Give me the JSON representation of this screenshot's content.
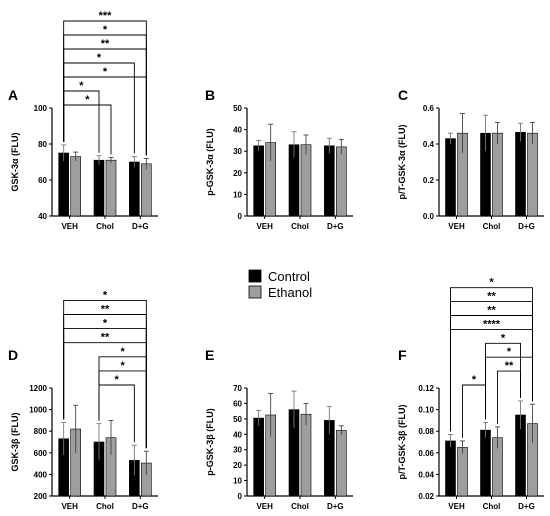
{
  "colors": {
    "control": "#000000",
    "ethanol": "#9e9e9e",
    "axis": "#000000"
  },
  "legend": {
    "items": [
      {
        "key": "control",
        "label": "Control"
      },
      {
        "key": "ethanol",
        "label": "Ethanol"
      }
    ]
  },
  "chart_data": [
    {
      "id": "A",
      "letter": "A",
      "type": "bar",
      "ylabel": "GSK-3α (FLU)",
      "ylim": [
        40,
        100
      ],
      "yticks": [
        40,
        60,
        80,
        100
      ],
      "categories": [
        "VEH",
        "Chol",
        "D+G"
      ],
      "series": [
        {
          "name": "Control",
          "values": [
            75,
            71,
            70
          ],
          "errors": [
            4.5,
            2.5,
            3
          ]
        },
        {
          "name": "Ethanol",
          "values": [
            73,
            71,
            69
          ],
          "errors": [
            2.5,
            1.5,
            3
          ]
        }
      ],
      "comparisons": [
        {
          "from": 0,
          "to": 3,
          "label": "*"
        },
        {
          "from": 0,
          "to": 2,
          "label": "*"
        },
        {
          "from": 0,
          "to": 5,
          "label": "*"
        },
        {
          "from": 0,
          "to": 4,
          "label": "*"
        },
        {
          "from": 0,
          "to": 5,
          "label": "**"
        },
        {
          "from": 0,
          "to": 5,
          "label": "*"
        },
        {
          "from": 0,
          "to": 5,
          "label": "***"
        }
      ]
    },
    {
      "id": "B",
      "letter": "B",
      "type": "bar",
      "ylabel": "p-GSK-3α (FLU)",
      "ylim": [
        0,
        50
      ],
      "yticks": [
        0,
        10,
        20,
        30,
        40,
        50
      ],
      "categories": [
        "VEH",
        "Chol",
        "D+G"
      ],
      "series": [
        {
          "name": "Control",
          "values": [
            32.5,
            33,
            32.5
          ],
          "errors": [
            2.5,
            6,
            3.5
          ]
        },
        {
          "name": "Ethanol",
          "values": [
            34,
            33,
            32
          ],
          "errors": [
            8.5,
            4.5,
            3.5
          ]
        }
      ],
      "comparisons": []
    },
    {
      "id": "C",
      "letter": "C",
      "type": "bar",
      "ylabel": "p/T-GSK-3α (FLU)",
      "ylim": [
        0,
        0.6
      ],
      "yticks": [
        0.0,
        0.2,
        0.4,
        0.6
      ],
      "categories": [
        "VEH",
        "Chol",
        "D+G"
      ],
      "series": [
        {
          "name": "Control",
          "values": [
            0.43,
            0.46,
            0.465
          ],
          "errors": [
            0.03,
            0.1,
            0.05
          ]
        },
        {
          "name": "Ethanol",
          "values": [
            0.46,
            0.46,
            0.46
          ],
          "errors": [
            0.11,
            0.06,
            0.06
          ]
        }
      ],
      "comparisons": []
    },
    {
      "id": "D",
      "letter": "D",
      "type": "bar",
      "ylabel": "GSK-3β (FLU)",
      "ylim": [
        200,
        1200
      ],
      "yticks": [
        200,
        400,
        600,
        800,
        1000,
        1200
      ],
      "categories": [
        "VEH",
        "Chol",
        "D+G"
      ],
      "series": [
        {
          "name": "Control",
          "values": [
            730,
            700,
            530
          ],
          "errors": [
            150,
            170,
            140
          ]
        },
        {
          "name": "Ethanol",
          "values": [
            820,
            740,
            505
          ],
          "errors": [
            220,
            160,
            110
          ]
        }
      ],
      "comparisons": [
        {
          "from": 2,
          "to": 4,
          "label": "*"
        },
        {
          "from": 2,
          "to": 5,
          "label": "*"
        },
        {
          "from": 2,
          "to": 5,
          "label": "*"
        },
        {
          "from": 0,
          "to": 5,
          "label": "**"
        },
        {
          "from": 0,
          "to": 5,
          "label": "*"
        },
        {
          "from": 0,
          "to": 5,
          "label": "**"
        },
        {
          "from": 0,
          "to": 5,
          "label": "*"
        }
      ]
    },
    {
      "id": "E",
      "letter": "E",
      "type": "bar",
      "ylabel": "p-GSK-3β (FLU)",
      "ylim": [
        0,
        70
      ],
      "yticks": [
        0,
        10,
        20,
        30,
        40,
        50,
        60,
        70
      ],
      "categories": [
        "VEH",
        "Chol",
        "D+G"
      ],
      "series": [
        {
          "name": "Control",
          "values": [
            50.5,
            56,
            49
          ],
          "errors": [
            5,
            12,
            9
          ]
        },
        {
          "name": "Ethanol",
          "values": [
            52.5,
            53,
            42.5
          ],
          "errors": [
            14,
            7,
            3
          ]
        }
      ],
      "comparisons": []
    },
    {
      "id": "F",
      "letter": "F",
      "type": "bar",
      "ylabel": "p/T-GSK-3β (FLU)",
      "ylim": [
        0.02,
        0.12
      ],
      "yticks": [
        0.02,
        0.04,
        0.06,
        0.08,
        0.1,
        0.12
      ],
      "categories": [
        "VEH",
        "Chol",
        "D+G"
      ],
      "series": [
        {
          "name": "Control",
          "values": [
            0.071,
            0.081,
            0.095
          ],
          "errors": [
            0.006,
            0.007,
            0.013
          ]
        },
        {
          "name": "Ethanol",
          "values": [
            0.065,
            0.074,
            0.087
          ],
          "errors": [
            0.006,
            0.01,
            0.018
          ]
        }
      ],
      "comparisons": [
        {
          "from": 1,
          "to": 2,
          "label": "*"
        },
        {
          "from": 3,
          "to": 4,
          "label": "**"
        },
        {
          "from": 2,
          "to": 5,
          "label": "*"
        },
        {
          "from": 2,
          "to": 4,
          "label": "*"
        },
        {
          "from": 0,
          "to": 5,
          "label": "****"
        },
        {
          "from": 0,
          "to": 5,
          "label": "**"
        },
        {
          "from": 0,
          "to": 5,
          "label": "**"
        },
        {
          "from": 0,
          "to": 5,
          "label": "*"
        }
      ]
    }
  ]
}
